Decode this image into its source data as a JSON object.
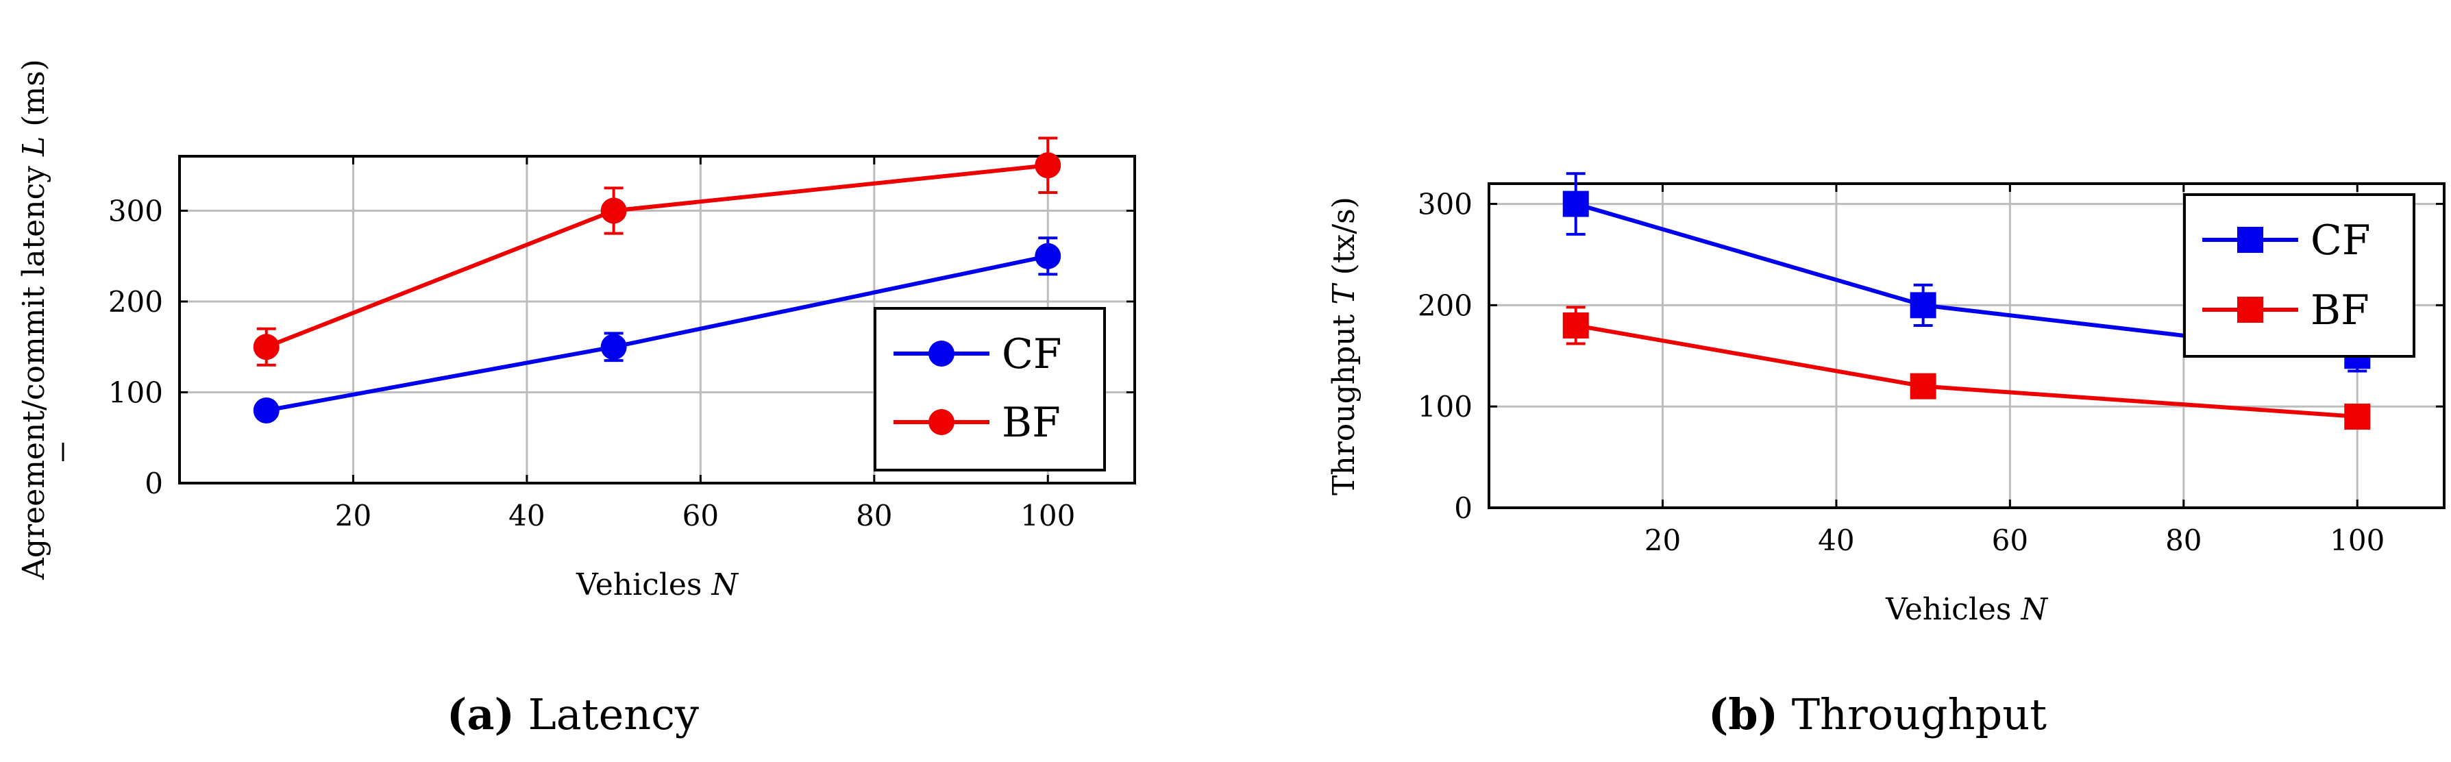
{
  "chart_data": [
    {
      "type": "line",
      "title": "",
      "xlabel_text": "Vehicles",
      "xlabel_var": "N",
      "ylabel_text": "Agreement/commit latency",
      "ylabel_var": "L",
      "ylabel_unit": "(ms)",
      "xlim": [
        0,
        110
      ],
      "ylim": [
        0,
        360
      ],
      "xticks": [
        20,
        40,
        60,
        80,
        100
      ],
      "yticks": [
        0,
        100,
        200,
        300
      ],
      "grid": true,
      "marker": "circle",
      "legend_position": "bottom-right",
      "series": [
        {
          "name": "CF",
          "color": "#0000ee",
          "x": [
            10,
            50,
            100
          ],
          "y": [
            80,
            150,
            250
          ],
          "err": [
            8,
            15,
            20
          ]
        },
        {
          "name": "BF",
          "color": "#ee0000",
          "x": [
            10,
            50,
            100
          ],
          "y": [
            150,
            300,
            350
          ],
          "err": [
            20,
            25,
            30
          ]
        }
      ],
      "caption_label": "(a)",
      "caption_text": "Latency"
    },
    {
      "type": "line",
      "title": "",
      "xlabel_text": "Vehicles",
      "xlabel_var": "N",
      "ylabel_text": "Throughput",
      "ylabel_var": "T",
      "ylabel_unit": "(tx/s)",
      "xlim": [
        0,
        110
      ],
      "ylim": [
        0,
        320
      ],
      "xticks": [
        20,
        40,
        60,
        80,
        100
      ],
      "yticks": [
        0,
        100,
        200,
        300
      ],
      "grid": true,
      "marker": "square",
      "legend_position": "top-right",
      "series": [
        {
          "name": "CF",
          "color": "#0000ee",
          "x": [
            10,
            50,
            100
          ],
          "y": [
            300,
            200,
            150
          ],
          "err": [
            30,
            20,
            15
          ]
        },
        {
          "name": "BF",
          "color": "#ee0000",
          "x": [
            10,
            50,
            100
          ],
          "y": [
            180,
            120,
            90
          ],
          "err": [
            18,
            10,
            8
          ]
        }
      ],
      "caption_label": "(b)",
      "caption_text": "Throughput"
    }
  ]
}
